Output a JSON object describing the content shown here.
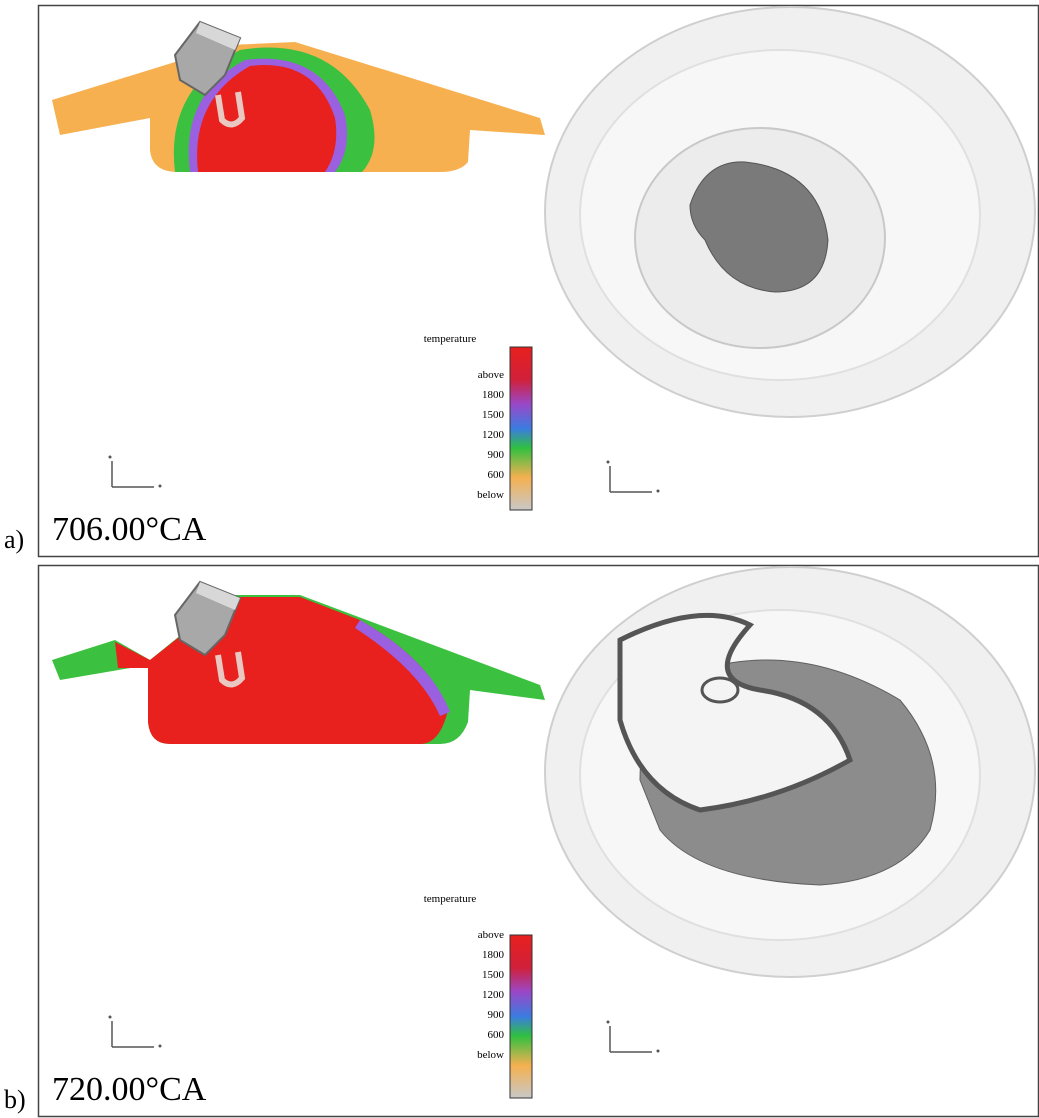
{
  "panels": [
    {
      "label": "a)",
      "time": "706.00°CA",
      "legend": {
        "title": "temperature",
        "labels": [
          "above",
          "1800",
          "1500",
          "1200",
          "900",
          "600",
          "below"
        ]
      }
    },
    {
      "label": "b)",
      "time": "720.00°CA",
      "legend": {
        "title": "temperature",
        "labels": [
          "above",
          "1800",
          "1500",
          "1200",
          "900",
          "600",
          "below"
        ]
      }
    }
  ]
}
